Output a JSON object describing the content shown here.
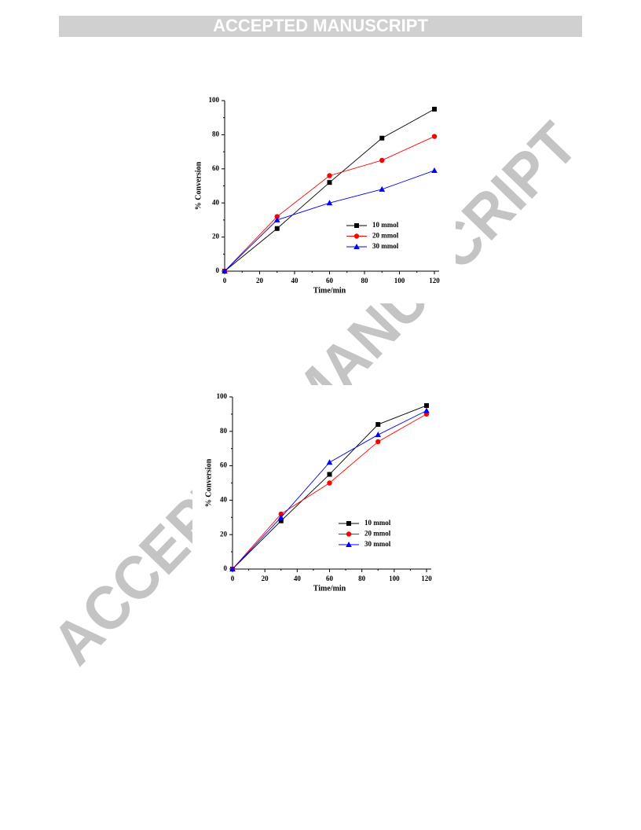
{
  "header": {
    "title": "ACCEPTED MANUSCRIPT"
  },
  "watermark": "ACCEPTED MANUSCRIPT",
  "chart_data": [
    {
      "type": "line",
      "x_label": "Time/min",
      "y_label": "% Conversion",
      "x": [
        0,
        30,
        60,
        90,
        120
      ],
      "xlim": [
        0,
        120
      ],
      "xticks": [
        0,
        20,
        40,
        60,
        80,
        100,
        120
      ],
      "ylim": [
        0,
        100
      ],
      "yticks": [
        0,
        20,
        40,
        60,
        80,
        100
      ],
      "legend": "lower right",
      "series": [
        {
          "name": "10 mmol",
          "color": "#000000",
          "marker": "square",
          "values": [
            0,
            25,
            52,
            78,
            95
          ]
        },
        {
          "name": "20 mmol",
          "color": "#ff0000",
          "marker": "circle",
          "values": [
            0,
            32,
            56,
            65,
            79
          ]
        },
        {
          "name": "30 mmol",
          "color": "#0000ff",
          "marker": "triangle",
          "values": [
            0,
            30,
            40,
            48,
            59
          ]
        }
      ]
    },
    {
      "type": "line",
      "x_label": "Time/min",
      "y_label": "% Conversion",
      "x": [
        0,
        30,
        60,
        90,
        120
      ],
      "xlim": [
        0,
        120
      ],
      "xticks": [
        0,
        20,
        40,
        60,
        80,
        100,
        120
      ],
      "ylim": [
        0,
        100
      ],
      "yticks": [
        0,
        20,
        40,
        60,
        80,
        100
      ],
      "legend": "lower right",
      "series": [
        {
          "name": "10 mmol",
          "color": "#000000",
          "marker": "square",
          "values": [
            0,
            28,
            55,
            84,
            95
          ]
        },
        {
          "name": "20 mmol",
          "color": "#ff0000",
          "marker": "circle",
          "values": [
            0,
            32,
            50,
            74,
            90
          ]
        },
        {
          "name": "30 mmol",
          "color": "#0000ff",
          "marker": "triangle",
          "values": [
            0,
            30,
            62,
            78,
            92
          ]
        }
      ]
    }
  ]
}
